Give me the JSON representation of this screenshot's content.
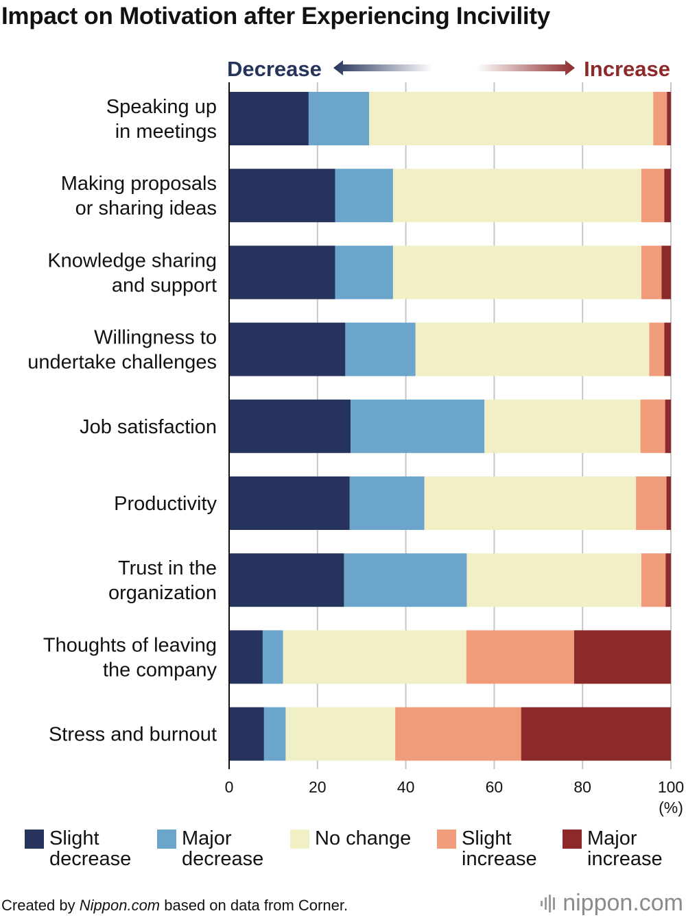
{
  "chart_data": {
    "type": "bar",
    "orientation": "horizontal",
    "stacked": true,
    "title": "Impact on Motivation after Experiencing Incivility",
    "direction_labels": {
      "decrease": "Decrease",
      "increase": "Increase"
    },
    "categories": [
      [
        "Speaking up",
        "in meetings"
      ],
      [
        "Making proposals",
        "or sharing ideas"
      ],
      [
        "Knowledge sharing",
        "and support"
      ],
      [
        "Willingness to",
        "undertake challenges"
      ],
      [
        "Job satisfaction"
      ],
      [
        "Productivity"
      ],
      [
        "Trust in the",
        "organization"
      ],
      [
        "Thoughts of leaving",
        "the company"
      ],
      [
        "Stress and burnout"
      ]
    ],
    "series": [
      {
        "name": "Slight decrease",
        "legend_lines": [
          "Slight",
          "decrease"
        ],
        "color": "#26335c",
        "values": [
          18.0,
          24.0,
          24.0,
          26.3,
          27.5,
          27.3,
          26.0,
          7.6,
          7.9
        ]
      },
      {
        "name": "Major decrease",
        "legend_lines": [
          "Major",
          "decrease"
        ],
        "color": "#6ca5cc",
        "values": [
          13.7,
          13.1,
          13.1,
          15.9,
          30.3,
          16.9,
          27.8,
          4.6,
          4.9
        ]
      },
      {
        "name": "No change",
        "legend_lines": [
          "No change"
        ],
        "color": "#f1efc6",
        "values": [
          64.3,
          56.2,
          56.2,
          52.9,
          35.3,
          47.9,
          39.5,
          41.5,
          24.8
        ]
      },
      {
        "name": "Slight increase",
        "legend_lines": [
          "Slight",
          "increase"
        ],
        "color": "#f09b79",
        "values": [
          3.1,
          5.2,
          4.6,
          3.4,
          5.6,
          6.9,
          5.5,
          24.4,
          28.5
        ]
      },
      {
        "name": "Major increase",
        "legend_lines": [
          "Major",
          "increase"
        ],
        "color": "#8c2a2b",
        "values": [
          0.9,
          1.5,
          2.1,
          1.5,
          1.3,
          1.0,
          1.2,
          21.9,
          33.9
        ]
      }
    ],
    "xlim": [
      0,
      100
    ],
    "xticks": [
      0,
      20,
      40,
      60,
      80,
      100
    ],
    "xunit": "(%)",
    "grid": true,
    "legend_position": "bottom"
  },
  "footer": {
    "created_by": "Created by ",
    "source_name": "Nippon.com",
    "rest": " based on data from Corner."
  },
  "logo": {
    "text": "nippon.com"
  }
}
